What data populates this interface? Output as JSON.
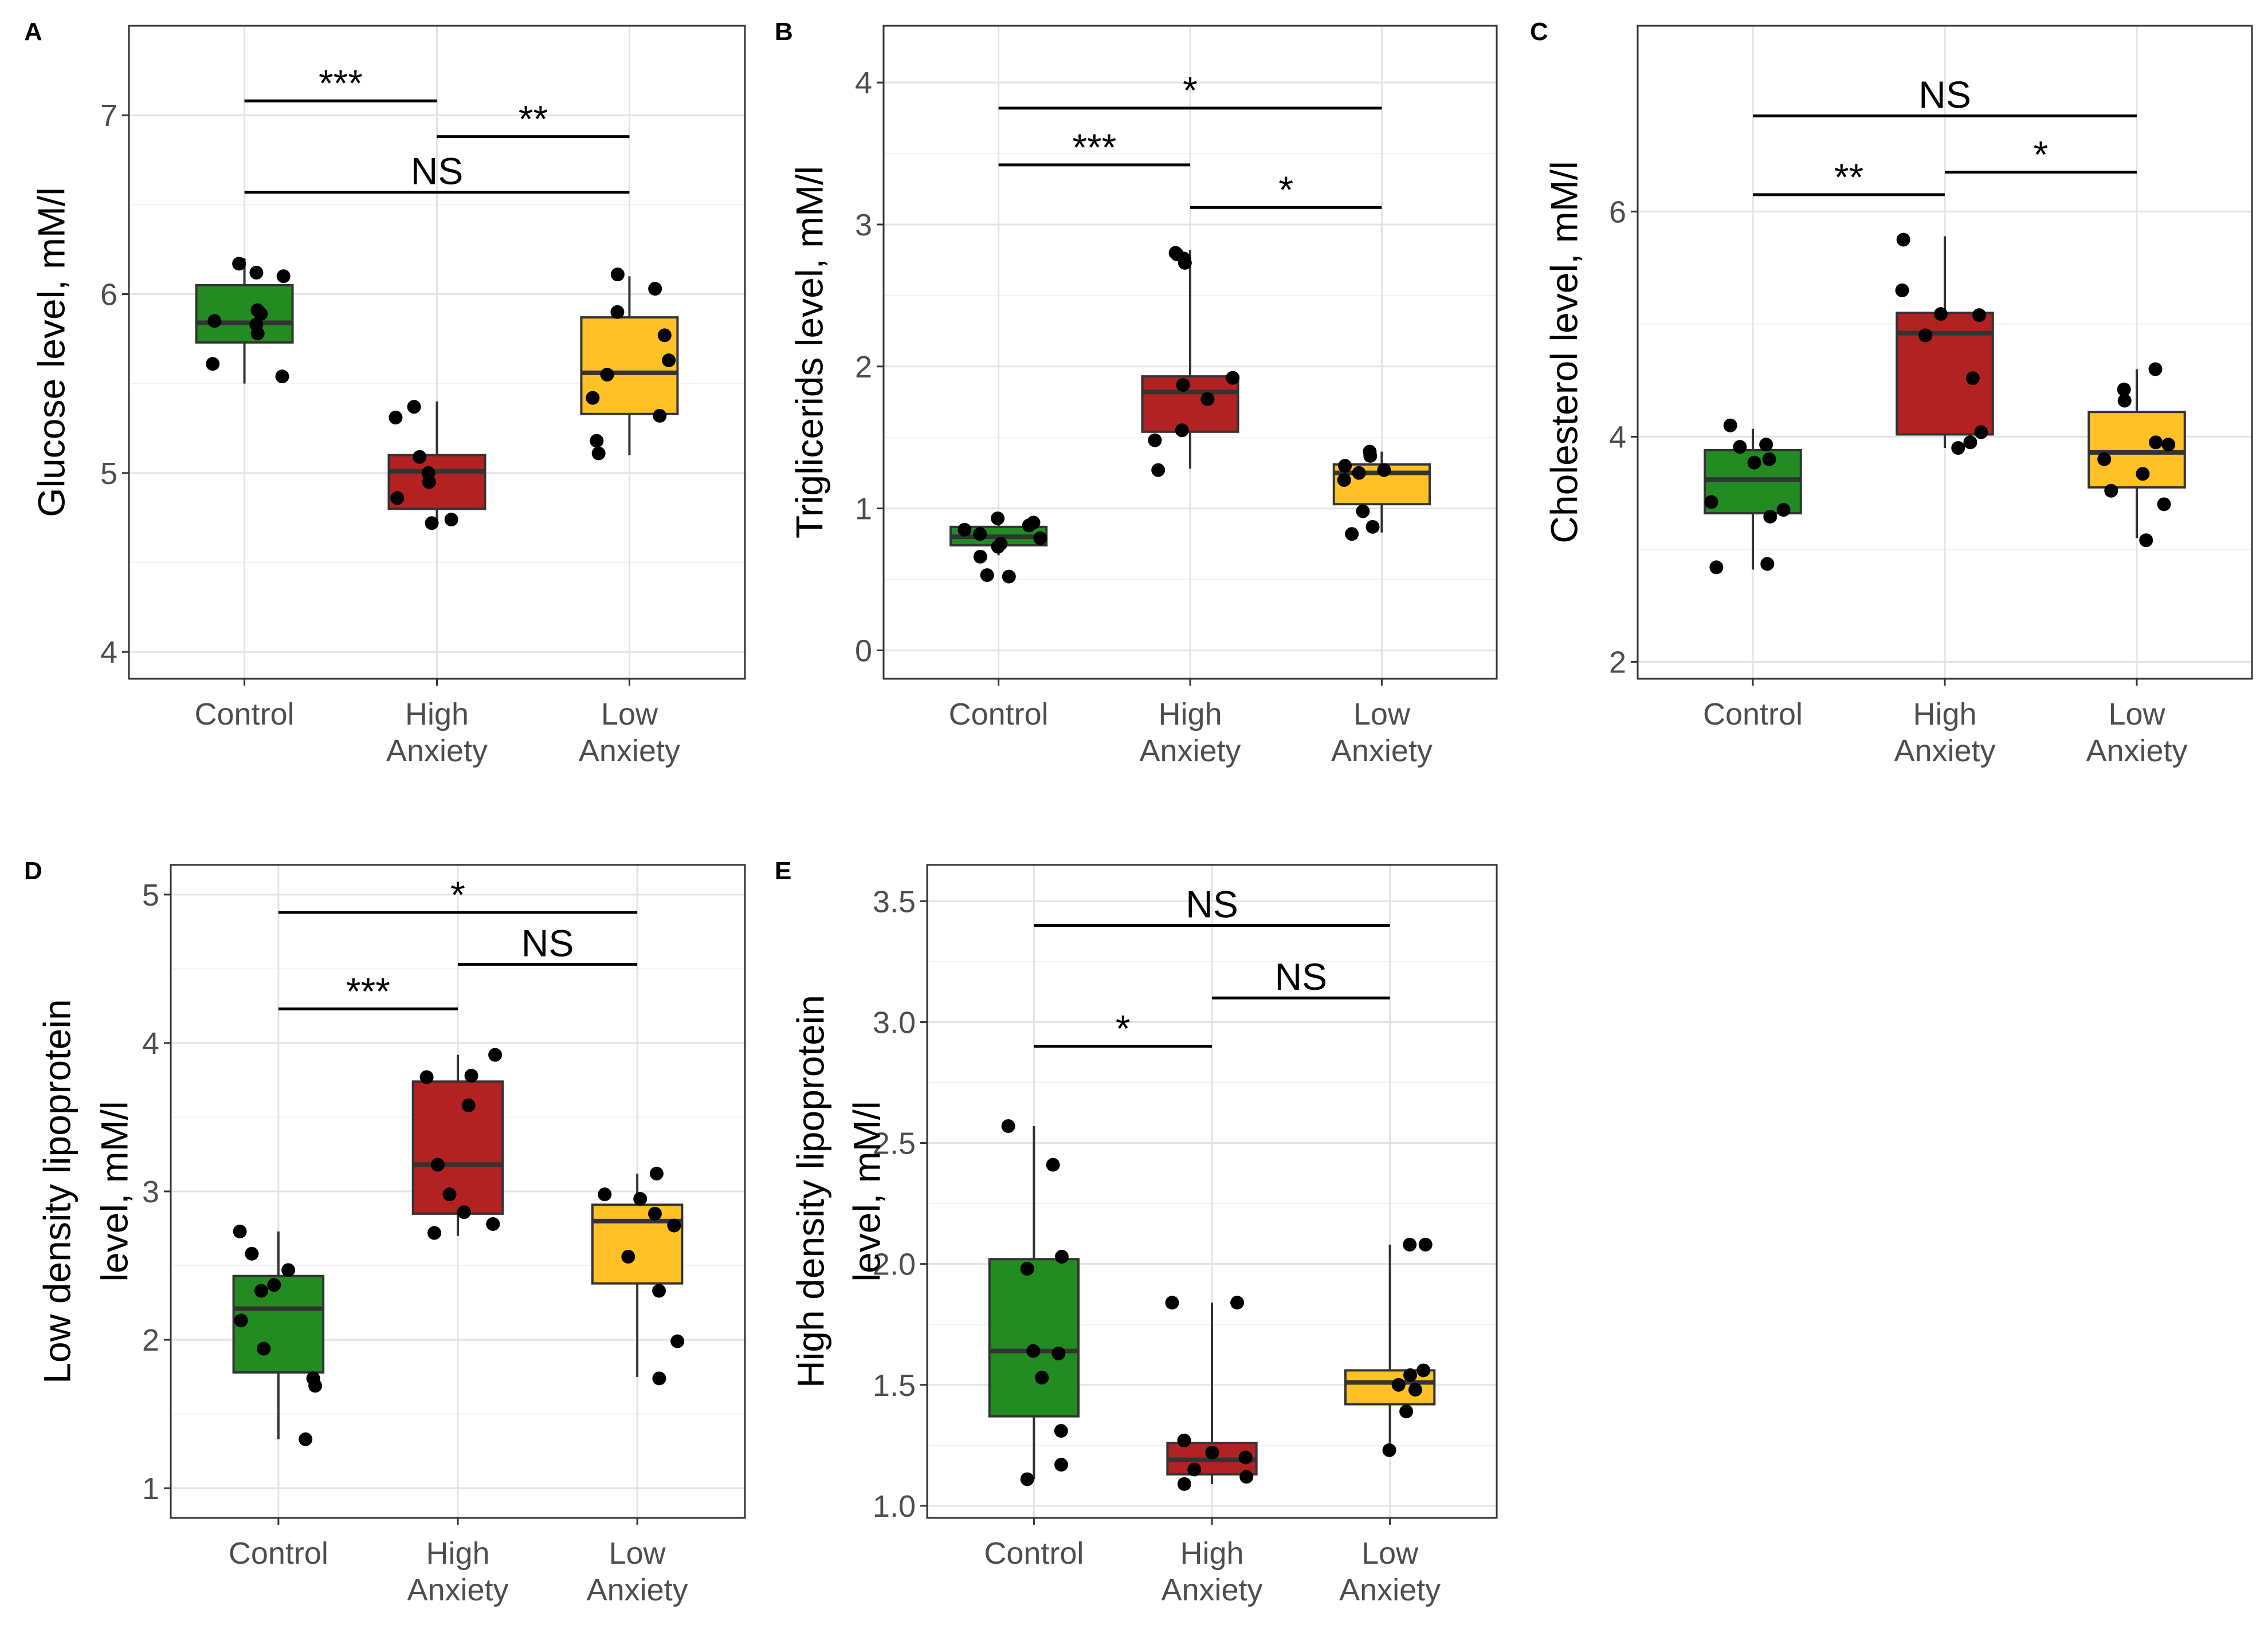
{
  "chart_data": [
    {
      "type": "box",
      "panel": "A",
      "ylabel": "Glucose level, mM/l",
      "ylim": [
        3.85,
        7.5
      ],
      "yticks": [
        4,
        5,
        6,
        7
      ],
      "tick_labels": [
        "4",
        "5",
        "6",
        "7"
      ],
      "categories": [
        "Control",
        "High Anxiety",
        "Low Anxiety"
      ],
      "category_labels": [
        [
          "Control"
        ],
        [
          "High",
          "Anxiety"
        ],
        [
          "Low",
          "Anxiety"
        ]
      ],
      "colors": [
        "#228b22",
        "#b22222",
        "#ffc125"
      ],
      "boxes": [
        {
          "group": "Control",
          "whisker_low": 5.5,
          "q1": 5.73,
          "median": 5.84,
          "q3": 6.05,
          "whisker_high": 6.2
        },
        {
          "group": "High Anxiety",
          "whisker_low": 4.7,
          "q1": 4.8,
          "median": 5.01,
          "q3": 5.1,
          "whisker_high": 5.4
        },
        {
          "group": "Low Anxiety",
          "whisker_low": 5.1,
          "q1": 5.33,
          "median": 5.56,
          "q3": 5.87,
          "whisker_high": 6.1
        }
      ],
      "points": [
        [
          6.17,
          6.12,
          6.1,
          5.91,
          5.89,
          5.85,
          5.83,
          5.78,
          5.61,
          5.54
        ],
        [
          5.37,
          5.31,
          5.09,
          5.0,
          4.95,
          4.86,
          4.74,
          4.72
        ],
        [
          6.11,
          6.03,
          5.9,
          5.77,
          5.63,
          5.55,
          5.42,
          5.32,
          5.18,
          5.11
        ]
      ],
      "significance": [
        {
          "from": 0,
          "to": 1,
          "y": 7.08,
          "label": "***"
        },
        {
          "from": 1,
          "to": 2,
          "y": 6.88,
          "label": "**"
        },
        {
          "from": 0,
          "to": 2,
          "y": 6.57,
          "label": "NS"
        }
      ]
    },
    {
      "type": "box",
      "panel": "B",
      "ylabel": "Triglicerids level, mM/l",
      "ylim": [
        -0.2,
        4.4
      ],
      "yticks": [
        0,
        1,
        2,
        3,
        4
      ],
      "tick_labels": [
        "0",
        "1",
        "2",
        "3",
        "4"
      ],
      "categories": [
        "Control",
        "High Anxiety",
        "Low Anxiety"
      ],
      "category_labels": [
        [
          "Control"
        ],
        [
          "High",
          "Anxiety"
        ],
        [
          "Low",
          "Anxiety"
        ]
      ],
      "colors": [
        "#228b22",
        "#b22222",
        "#ffc125"
      ],
      "boxes": [
        {
          "group": "Control",
          "whisker_low": 0.67,
          "q1": 0.74,
          "median": 0.8,
          "q3": 0.87,
          "whisker_high": 0.93
        },
        {
          "group": "High Anxiety",
          "whisker_low": 1.28,
          "q1": 1.54,
          "median": 1.82,
          "q3": 1.93,
          "whisker_high": 2.82
        },
        {
          "group": "Low Anxiety",
          "whisker_low": 0.83,
          "q1": 1.03,
          "median": 1.25,
          "q3": 1.31,
          "whisker_high": 1.4
        }
      ],
      "points": [
        [
          0.93,
          0.9,
          0.88,
          0.85,
          0.82,
          0.79,
          0.75,
          0.73,
          0.66,
          0.53,
          0.52
        ],
        [
          2.8,
          2.79,
          2.76,
          2.73,
          1.92,
          1.87,
          1.77,
          1.55,
          1.48,
          1.27
        ],
        [
          1.4,
          1.37,
          1.3,
          1.27,
          1.25,
          1.2,
          0.98,
          0.87,
          0.82
        ]
      ],
      "significance": [
        {
          "from": 0,
          "to": 2,
          "y": 3.82,
          "label": "*"
        },
        {
          "from": 0,
          "to": 1,
          "y": 3.42,
          "label": "***"
        },
        {
          "from": 1,
          "to": 2,
          "y": 3.12,
          "label": "*"
        }
      ]
    },
    {
      "type": "box",
      "panel": "C",
      "ylabel": "Cholesterol level, mM/l",
      "ylim": [
        1.85,
        7.65
      ],
      "yticks": [
        2,
        4,
        6
      ],
      "tick_labels": [
        "2",
        "4",
        "6"
      ],
      "categories": [
        "Control",
        "High Anxiety",
        "Low Anxiety"
      ],
      "category_labels": [
        [
          "Control"
        ],
        [
          "High",
          "Anxiety"
        ],
        [
          "Low",
          "Anxiety"
        ]
      ],
      "colors": [
        "#228b22",
        "#b22222",
        "#ffc125"
      ],
      "boxes": [
        {
          "group": "Control",
          "whisker_low": 2.82,
          "q1": 3.32,
          "median": 3.62,
          "q3": 3.88,
          "whisker_high": 4.07
        },
        {
          "group": "High Anxiety",
          "whisker_low": 3.9,
          "q1": 4.02,
          "median": 4.92,
          "q3": 5.1,
          "whisker_high": 5.78
        },
        {
          "group": "Low Anxiety",
          "whisker_low": 3.1,
          "q1": 3.55,
          "median": 3.86,
          "q3": 4.22,
          "whisker_high": 4.6
        }
      ],
      "points": [
        [
          4.1,
          3.93,
          3.91,
          3.8,
          3.77,
          3.42,
          3.35,
          3.29,
          2.87,
          2.84
        ],
        [
          5.75,
          5.3,
          5.09,
          5.08,
          4.9,
          4.52,
          4.04,
          3.95,
          3.9
        ],
        [
          4.6,
          4.42,
          4.32,
          3.95,
          3.93,
          3.8,
          3.67,
          3.52,
          3.4,
          3.08
        ]
      ],
      "significance": [
        {
          "from": 0,
          "to": 2,
          "y": 6.85,
          "label": "NS"
        },
        {
          "from": 1,
          "to": 2,
          "y": 6.35,
          "label": "*"
        },
        {
          "from": 0,
          "to": 1,
          "y": 6.15,
          "label": "**"
        }
      ]
    },
    {
      "type": "box",
      "panel": "D",
      "ylabel": "Low density lipoprotein level, mM/l",
      "ylabel_lines": [
        "Low density lipoprotein",
        "level, mM/l"
      ],
      "ylim": [
        0.8,
        5.2
      ],
      "yticks": [
        1,
        2,
        3,
        4,
        5
      ],
      "tick_labels": [
        "1",
        "2",
        "3",
        "4",
        "5"
      ],
      "categories": [
        "Control",
        "High Anxiety",
        "Low Anxiety"
      ],
      "category_labels": [
        [
          "Control"
        ],
        [
          "High",
          "Anxiety"
        ],
        [
          "Low",
          "Anxiety"
        ]
      ],
      "colors": [
        "#228b22",
        "#b22222",
        "#ffc125"
      ],
      "boxes": [
        {
          "group": "Control",
          "whisker_low": 1.33,
          "q1": 1.78,
          "median": 2.21,
          "q3": 2.43,
          "whisker_high": 2.73
        },
        {
          "group": "High Anxiety",
          "whisker_low": 2.7,
          "q1": 2.85,
          "median": 3.18,
          "q3": 3.74,
          "whisker_high": 3.92
        },
        {
          "group": "Low Anxiety",
          "whisker_low": 1.75,
          "q1": 2.38,
          "median": 2.8,
          "q3": 2.91,
          "whisker_high": 3.12
        }
      ],
      "points": [
        [
          2.73,
          2.58,
          2.47,
          2.37,
          2.33,
          2.13,
          1.94,
          1.74,
          1.69,
          1.33
        ],
        [
          3.92,
          3.78,
          3.77,
          3.58,
          3.18,
          2.98,
          2.86,
          2.78,
          2.72
        ],
        [
          3.12,
          2.98,
          2.95,
          2.85,
          2.77,
          2.56,
          2.33,
          1.99,
          1.74
        ]
      ],
      "significance": [
        {
          "from": 0,
          "to": 2,
          "y": 4.88,
          "label": "*"
        },
        {
          "from": 1,
          "to": 2,
          "y": 4.53,
          "label": "NS"
        },
        {
          "from": 0,
          "to": 1,
          "y": 4.23,
          "label": "***"
        }
      ]
    },
    {
      "type": "box",
      "panel": "E",
      "ylabel": "High density lipoprotein level, mM/l",
      "ylabel_lines": [
        "High density lipoprotein",
        "level, mM/l"
      ],
      "ylim": [
        0.95,
        3.65
      ],
      "yticks": [
        1.0,
        1.5,
        2.0,
        2.5,
        3.0,
        3.5
      ],
      "tick_labels": [
        "1.0",
        "1.5",
        "2.0",
        "2.5",
        "3.0",
        "3.5"
      ],
      "categories": [
        "Control",
        "High Anxiety",
        "Low Anxiety"
      ],
      "category_labels": [
        [
          "Control"
        ],
        [
          "High",
          "Anxiety"
        ],
        [
          "Low",
          "Anxiety"
        ]
      ],
      "colors": [
        "#228b22",
        "#b22222",
        "#ffc125"
      ],
      "boxes": [
        {
          "group": "Control",
          "whisker_low": 1.11,
          "q1": 1.37,
          "median": 1.64,
          "q3": 2.02,
          "whisker_high": 2.57
        },
        {
          "group": "High Anxiety",
          "whisker_low": 1.09,
          "q1": 1.13,
          "median": 1.19,
          "q3": 1.26,
          "whisker_high": 1.84
        },
        {
          "group": "Low Anxiety",
          "whisker_low": 1.23,
          "q1": 1.42,
          "median": 1.51,
          "q3": 1.56,
          "whisker_high": 2.08
        }
      ],
      "points": [
        [
          2.57,
          2.41,
          2.03,
          1.98,
          1.64,
          1.63,
          1.53,
          1.31,
          1.17,
          1.11
        ],
        [
          1.84,
          1.84,
          1.27,
          1.22,
          1.2,
          1.15,
          1.12,
          1.09
        ],
        [
          2.08,
          2.08,
          1.56,
          1.54,
          1.5,
          1.48,
          1.39,
          1.23
        ]
      ],
      "significance": [
        {
          "from": 0,
          "to": 2,
          "y": 3.4,
          "label": "NS"
        },
        {
          "from": 1,
          "to": 2,
          "y": 3.1,
          "label": "NS"
        },
        {
          "from": 0,
          "to": 1,
          "y": 2.9,
          "label": "*"
        }
      ]
    }
  ]
}
